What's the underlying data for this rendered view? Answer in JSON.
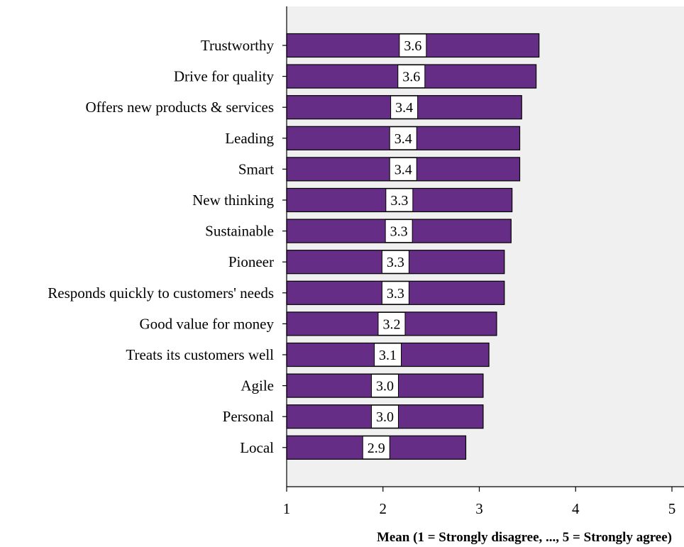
{
  "chart_data": {
    "type": "bar",
    "orientation": "horizontal",
    "categories": [
      "Trustworthy",
      "Drive for quality",
      "Offers new products & services",
      "Leading",
      "Smart",
      "New thinking",
      "Sustainable",
      "Pioneer",
      "Responds quickly to customers' needs",
      "Good value for money",
      "Treats its customers well",
      "Agile",
      "Personal",
      "Local"
    ],
    "values": [
      3.62,
      3.59,
      3.44,
      3.42,
      3.42,
      3.34,
      3.33,
      3.26,
      3.26,
      3.18,
      3.1,
      3.04,
      3.04,
      2.86
    ],
    "data_labels": [
      "3.6",
      "3.6",
      "3.4",
      "3.4",
      "3.4",
      "3.3",
      "3.3",
      "3.3",
      "3.3",
      "3.2",
      "3.1",
      "3.0",
      "3.0",
      "2.9"
    ],
    "xlabel": "Mean (1 = Strongly disagree, ..., 5 = Strongly agree)",
    "ylabel": "",
    "xlim": [
      1,
      5
    ],
    "xticks": [
      "1",
      "2",
      "3",
      "4",
      "5"
    ],
    "grid": false,
    "bar_color": "#662d87",
    "plot_background": "#f0f0f0"
  }
}
